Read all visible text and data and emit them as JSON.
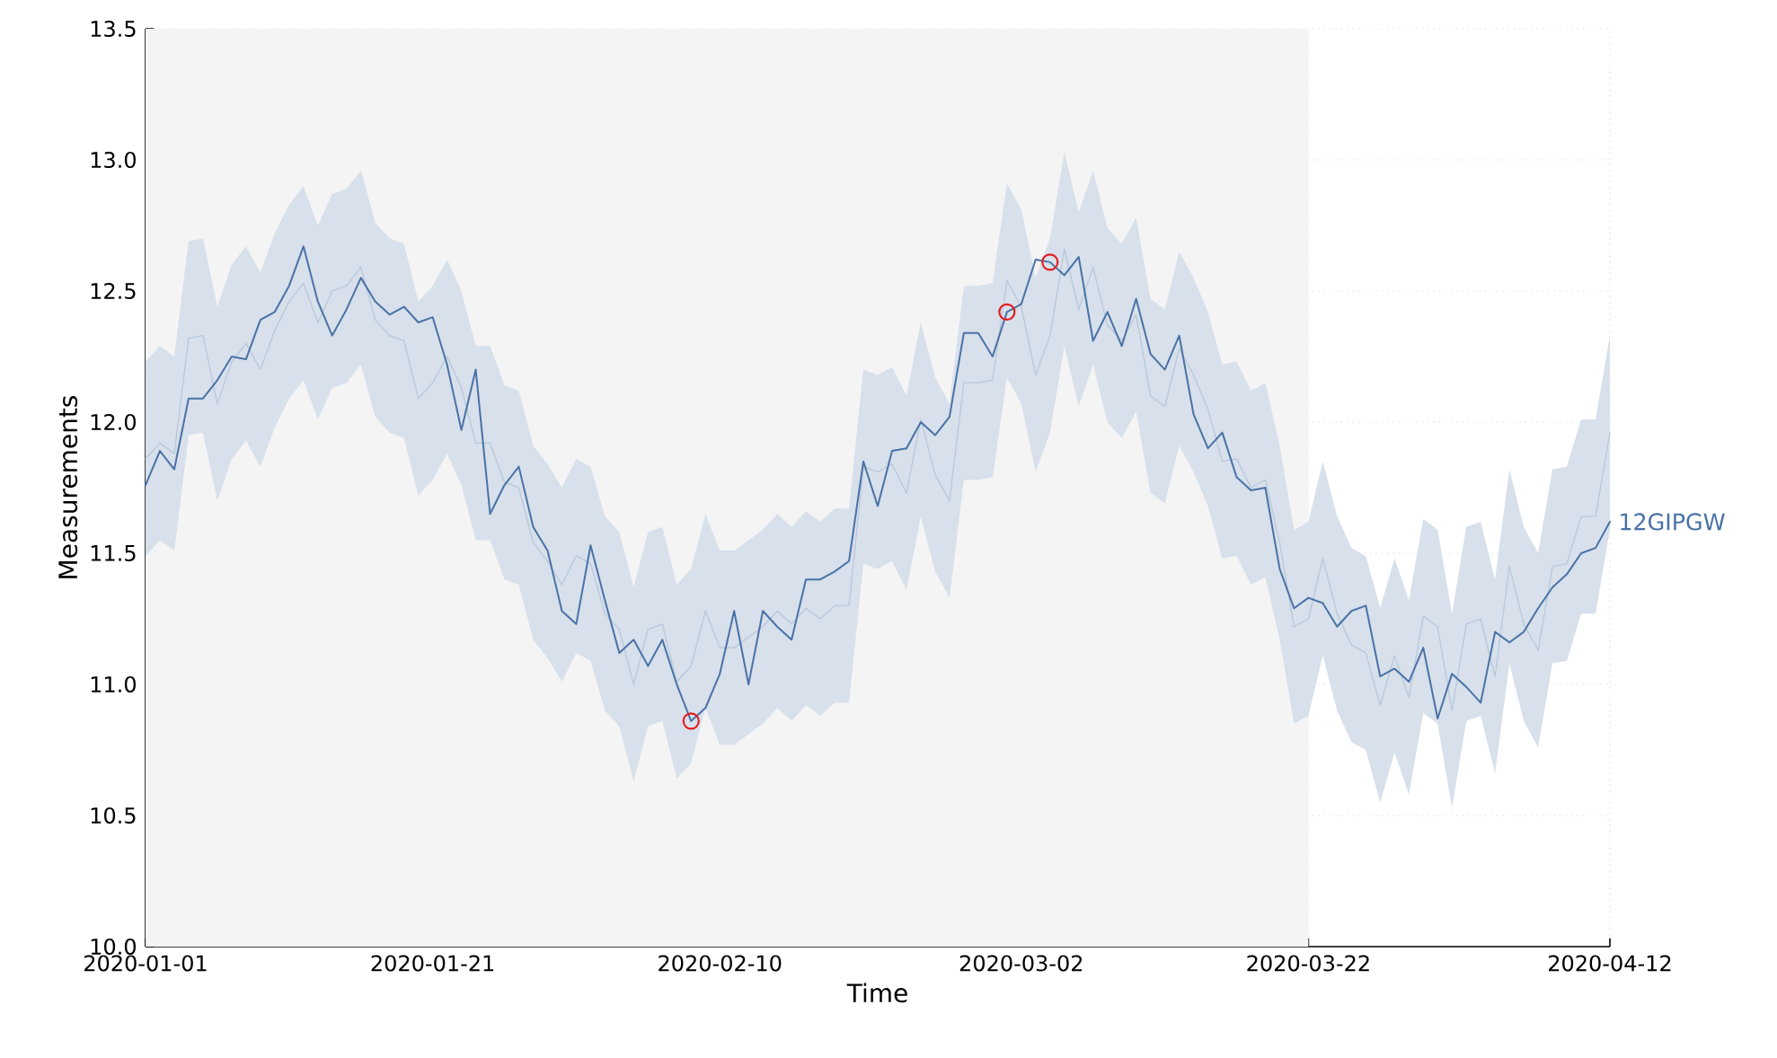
{
  "chart_data": {
    "type": "line",
    "xlabel": "Time",
    "ylabel": "Measurements",
    "x": [
      "2020-01-01",
      "2020-01-02",
      "2020-01-03",
      "2020-01-04",
      "2020-01-05",
      "2020-01-06",
      "2020-01-07",
      "2020-01-08",
      "2020-01-09",
      "2020-01-10",
      "2020-01-11",
      "2020-01-12",
      "2020-01-13",
      "2020-01-14",
      "2020-01-15",
      "2020-01-16",
      "2020-01-17",
      "2020-01-18",
      "2020-01-19",
      "2020-01-20",
      "2020-01-21",
      "2020-01-22",
      "2020-01-23",
      "2020-01-24",
      "2020-01-25",
      "2020-01-26",
      "2020-01-27",
      "2020-01-28",
      "2020-01-29",
      "2020-01-30",
      "2020-01-31",
      "2020-02-01",
      "2020-02-02",
      "2020-02-03",
      "2020-02-04",
      "2020-02-05",
      "2020-02-06",
      "2020-02-07",
      "2020-02-08",
      "2020-02-09",
      "2020-02-10",
      "2020-02-11",
      "2020-02-12",
      "2020-02-13",
      "2020-02-14",
      "2020-02-15",
      "2020-02-16",
      "2020-02-17",
      "2020-02-18",
      "2020-02-19",
      "2020-02-20",
      "2020-02-21",
      "2020-02-22",
      "2020-02-23",
      "2020-02-24",
      "2020-02-25",
      "2020-02-26",
      "2020-02-27",
      "2020-02-28",
      "2020-02-29",
      "2020-03-01",
      "2020-03-02",
      "2020-03-03",
      "2020-03-04",
      "2020-03-05",
      "2020-03-06",
      "2020-03-07",
      "2020-03-08",
      "2020-03-09",
      "2020-03-10",
      "2020-03-11",
      "2020-03-12",
      "2020-03-13",
      "2020-03-14",
      "2020-03-15",
      "2020-03-16",
      "2020-03-17",
      "2020-03-18",
      "2020-03-19",
      "2020-03-20",
      "2020-03-21",
      "2020-03-22",
      "2020-03-23",
      "2020-03-24",
      "2020-03-25",
      "2020-03-26",
      "2020-03-27",
      "2020-03-28",
      "2020-03-29",
      "2020-03-30",
      "2020-03-31",
      "2020-04-01",
      "2020-04-02",
      "2020-04-03",
      "2020-04-04",
      "2020-04-05",
      "2020-04-06",
      "2020-04-07",
      "2020-04-08",
      "2020-04-09",
      "2020-04-10",
      "2020-04-11",
      "2020-04-12"
    ],
    "series": [
      {
        "color": "#b9c8da",
        "values": [
          11.86,
          11.92,
          11.88,
          12.32,
          12.33,
          12.07,
          12.23,
          12.3,
          12.2,
          12.35,
          12.46,
          12.53,
          12.38,
          12.5,
          12.52,
          12.59,
          12.39,
          12.33,
          12.31,
          12.09,
          12.15,
          12.25,
          12.13,
          11.92,
          11.92,
          11.77,
          11.75,
          11.54,
          11.47,
          11.38,
          11.49,
          11.46,
          11.27,
          11.21,
          11.0,
          11.21,
          11.23,
          11.01,
          11.07,
          11.28,
          11.14,
          11.14,
          11.18,
          11.22,
          11.28,
          11.23,
          11.29,
          11.25,
          11.3,
          11.3,
          11.83,
          11.81,
          11.84,
          11.73,
          12.01,
          11.8,
          11.7,
          12.15,
          12.15,
          12.16,
          12.54,
          12.44,
          12.18,
          12.33,
          12.66,
          12.43,
          12.59,
          12.37,
          12.31,
          12.41,
          12.1,
          12.06,
          12.28,
          12.18,
          12.05,
          11.85,
          11.86,
          11.75,
          11.78,
          11.54,
          11.22,
          11.25,
          11.48,
          11.27,
          11.15,
          11.12,
          10.92,
          11.11,
          10.95,
          11.26,
          11.22,
          10.9,
          11.23,
          11.25,
          11.03,
          11.45,
          11.23,
          11.13,
          11.45,
          11.46,
          11.64,
          11.64,
          11.96
        ]
      },
      {
        "name": "12GIPGW",
        "color": "#4a72a6",
        "values": [
          11.76,
          11.89,
          11.82,
          12.09,
          12.09,
          12.16,
          12.25,
          12.24,
          12.39,
          12.42,
          12.52,
          12.67,
          12.46,
          12.33,
          12.43,
          12.55,
          12.46,
          12.41,
          12.44,
          12.38,
          12.4,
          12.22,
          11.97,
          12.2,
          11.65,
          11.76,
          11.83,
          11.6,
          11.51,
          11.28,
          11.23,
          11.53,
          11.32,
          11.12,
          11.17,
          11.07,
          11.17,
          11.0,
          10.86,
          10.91,
          11.04,
          11.28,
          11.0,
          11.28,
          11.22,
          11.17,
          11.4,
          11.4,
          11.43,
          11.47,
          11.85,
          11.68,
          11.89,
          11.9,
          12.0,
          11.95,
          12.02,
          12.34,
          12.34,
          12.25,
          12.42,
          12.45,
          12.62,
          12.61,
          12.56,
          12.63,
          12.31,
          12.42,
          12.29,
          12.47,
          12.26,
          12.2,
          12.33,
          12.03,
          11.9,
          11.96,
          11.79,
          11.74,
          11.75,
          11.44,
          11.29,
          11.33,
          11.31,
          11.22,
          11.28,
          11.3,
          11.03,
          11.06,
          11.01,
          11.14,
          10.87,
          11.04,
          10.99,
          10.93,
          11.2,
          11.16,
          11.2,
          11.29,
          11.37,
          11.42,
          11.5,
          11.52,
          11.62
        ],
        "upper": [
          12.23,
          12.29,
          12.25,
          12.69,
          12.7,
          12.44,
          12.6,
          12.67,
          12.57,
          12.72,
          12.83,
          12.9,
          12.75,
          12.87,
          12.89,
          12.96,
          12.76,
          12.7,
          12.68,
          12.46,
          12.52,
          12.62,
          12.5,
          12.29,
          12.29,
          12.14,
          12.12,
          11.91,
          11.84,
          11.75,
          11.86,
          11.83,
          11.64,
          11.58,
          11.37,
          11.58,
          11.6,
          11.38,
          11.44,
          11.65,
          11.51,
          11.51,
          11.55,
          11.59,
          11.65,
          11.6,
          11.66,
          11.62,
          11.67,
          11.67,
          12.2,
          12.18,
          12.21,
          12.1,
          12.38,
          12.17,
          12.07,
          12.52,
          12.52,
          12.53,
          12.91,
          12.81,
          12.55,
          12.7,
          13.03,
          12.8,
          12.96,
          12.74,
          12.68,
          12.78,
          12.47,
          12.43,
          12.65,
          12.55,
          12.42,
          12.22,
          12.23,
          12.12,
          12.15,
          11.91,
          11.59,
          11.62,
          11.85,
          11.64,
          11.52,
          11.49,
          11.29,
          11.48,
          11.32,
          11.63,
          11.59,
          11.27,
          11.6,
          11.62,
          11.4,
          11.82,
          11.6,
          11.5,
          11.82,
          11.83,
          12.01,
          12.01,
          12.33
        ],
        "lower": [
          11.49,
          11.55,
          11.51,
          11.95,
          11.96,
          11.7,
          11.86,
          11.93,
          11.83,
          11.98,
          12.09,
          12.16,
          12.01,
          12.13,
          12.15,
          12.22,
          12.02,
          11.96,
          11.94,
          11.72,
          11.78,
          11.88,
          11.76,
          11.55,
          11.55,
          11.4,
          11.38,
          11.17,
          11.1,
          11.01,
          11.12,
          11.09,
          10.9,
          10.84,
          10.63,
          10.84,
          10.86,
          10.64,
          10.7,
          10.91,
          10.77,
          10.77,
          10.81,
          10.85,
          10.91,
          10.86,
          10.92,
          10.88,
          10.93,
          10.93,
          11.46,
          11.44,
          11.47,
          11.36,
          11.64,
          11.43,
          11.33,
          11.78,
          11.78,
          11.79,
          12.17,
          12.07,
          11.81,
          11.96,
          12.29,
          12.06,
          12.22,
          12.0,
          11.94,
          12.04,
          11.73,
          11.69,
          11.91,
          11.81,
          11.68,
          11.48,
          11.49,
          11.38,
          11.41,
          11.17,
          10.85,
          10.88,
          11.11,
          10.9,
          10.78,
          10.75,
          10.55,
          10.74,
          10.58,
          10.89,
          10.85,
          10.53,
          10.86,
          10.88,
          10.66,
          11.08,
          10.86,
          10.76,
          11.08,
          11.09,
          11.27,
          11.27,
          11.59
        ]
      },
      {
        "type": "scatter",
        "color": "#e41a1c",
        "marker": "circle",
        "x": [
          "2020-02-08",
          "2020-03-01",
          "2020-03-04"
        ],
        "values": [
          10.86,
          12.42,
          12.61
        ]
      }
    ],
    "bands": [
      {
        "axis": "x",
        "from": "2020-01-01",
        "to": "2020-03-22",
        "color": "#f4f4f4"
      }
    ],
    "xlim": [
      "2020-01-01",
      "2020-04-12"
    ],
    "xticks": [
      "2020-01-01",
      "2020-01-21",
      "2020-02-10",
      "2020-03-02",
      "2020-03-22",
      "2020-04-12"
    ],
    "ylim": [
      10,
      13.5
    ],
    "yticks": [
      {
        "value": 10,
        "label": "10.0"
      },
      {
        "value": 10.5,
        "label": "10.5"
      },
      {
        "value": 11,
        "label": "11.0"
      },
      {
        "value": 11.5,
        "label": "11.5"
      },
      {
        "value": 12,
        "label": "12.0"
      },
      {
        "value": 12.5,
        "label": "12.5"
      },
      {
        "value": 13,
        "label": "13.0"
      },
      {
        "value": 13.5,
        "label": "13.5"
      }
    ],
    "grid": true
  }
}
